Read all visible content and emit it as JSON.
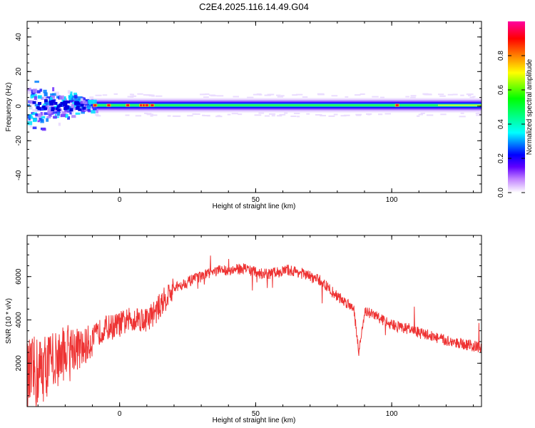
{
  "title": "C2E4.2025.116.14.49.G04",
  "chart_data": [
    {
      "type": "heatmap",
      "xlabel": "Height of straight line (km)",
      "ylabel": "Frequency (Hz)",
      "xlim": [
        -34,
        133
      ],
      "ylim": [
        -50,
        49
      ],
      "xticks": [
        0,
        50,
        100
      ],
      "yticks": [
        -40,
        -20,
        0,
        20,
        40
      ],
      "colorbar": {
        "label": "Normalized spectral amplitude",
        "range": [
          0,
          1
        ],
        "ticks": [
          0.0,
          0.2,
          0.4,
          0.6,
          0.8
        ],
        "tick_labels": [
          "0.0",
          "0.2",
          "0.4",
          "0.6",
          "0.8"
        ],
        "colors": [
          "#ffffff",
          "#c080ff",
          "#6000ff",
          "#0000ff",
          "#00ffff",
          "#00ff80",
          "#00ff00",
          "#ffff00",
          "#ff8000",
          "#ff0000",
          "#ff00a0"
        ]
      },
      "band": {
        "center_freq": 0.5,
        "halfwidth_core": 1.5,
        "halfwidth_halo": 4.5
      },
      "hotspots_x": [
        -9,
        -4,
        3,
        8,
        9,
        10,
        12,
        102
      ],
      "scatter_region_x": [
        -34,
        -12
      ]
    },
    {
      "type": "line",
      "xlabel": "Height of straight line (km)",
      "ylabel": "SNR (10 * v/v)",
      "xlim": [
        -34,
        133
      ],
      "ylim": [
        0,
        7900
      ],
      "xticks": [
        0,
        50,
        100
      ],
      "yticks": [
        2000,
        4000,
        6000
      ],
      "color": "#ee3333",
      "x": [
        -34,
        -30,
        -26,
        -22,
        -18,
        -14,
        -10,
        -6,
        -2,
        2,
        6,
        10,
        14,
        18,
        22,
        26,
        30,
        34,
        38,
        42,
        46,
        50,
        54,
        58,
        62,
        66,
        70,
        74,
        78,
        82,
        86,
        88,
        90,
        94,
        98,
        102,
        106,
        110,
        114,
        118,
        122,
        126,
        130,
        133
      ],
      "y": [
        1200,
        1600,
        2000,
        2300,
        2800,
        2600,
        3100,
        3600,
        3700,
        3900,
        4100,
        4000,
        4500,
        5200,
        5600,
        5800,
        6000,
        6200,
        6300,
        6300,
        6400,
        6200,
        6100,
        6200,
        6300,
        6200,
        6000,
        5800,
        5300,
        4900,
        4600,
        2500,
        4400,
        4200,
        3900,
        3700,
        3600,
        3400,
        3300,
        3100,
        3000,
        2900,
        2800,
        2700
      ]
    }
  ]
}
